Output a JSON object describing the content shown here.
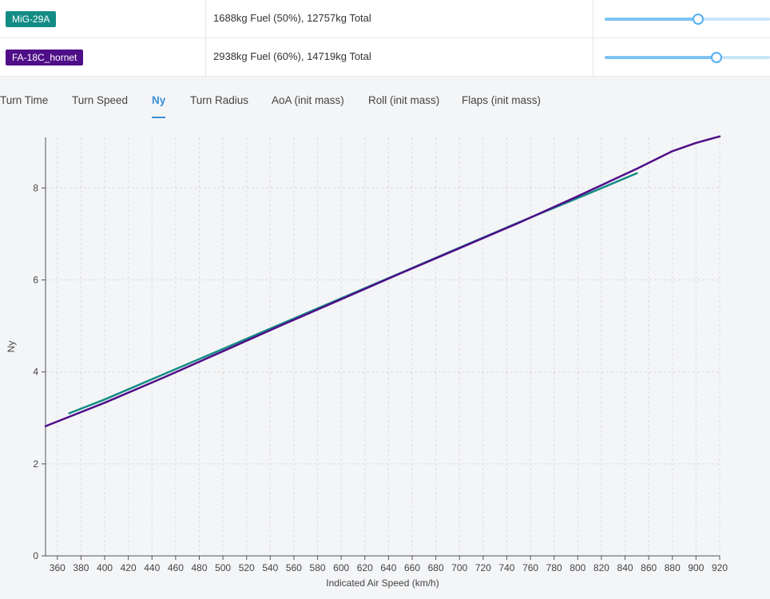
{
  "aircraft_table": {
    "rows": [
      {
        "name": "MiG-29A",
        "color": "#138c84",
        "fuel_text": "1688kg Fuel (50%), 12757kg Total",
        "fuel_fraction": 0.5
      },
      {
        "name": "FA-18C_hornet",
        "color": "#4f0e88",
        "fuel_text": "2938kg Fuel (60%), 14719kg Total",
        "fuel_fraction": 0.6
      }
    ]
  },
  "tabs": [
    {
      "label": "Turn Time",
      "active": false
    },
    {
      "label": "Turn Speed",
      "active": false
    },
    {
      "label": "Ny",
      "active": true
    },
    {
      "label": "Turn Radius",
      "active": false
    },
    {
      "label": "AoA (init mass)",
      "active": false
    },
    {
      "label": "Roll (init mass)",
      "active": false
    },
    {
      "label": "Flaps (init mass)",
      "active": false
    }
  ],
  "chart_data": {
    "type": "line",
    "xlabel": "Indicated Air Speed (km/h)",
    "ylabel": "Ny",
    "xlim": [
      350,
      920
    ],
    "ylim": [
      0,
      9.1
    ],
    "x_ticks": [
      360,
      380,
      400,
      420,
      440,
      460,
      480,
      500,
      520,
      540,
      560,
      580,
      600,
      620,
      640,
      660,
      680,
      700,
      720,
      740,
      760,
      780,
      800,
      820,
      840,
      860,
      880,
      900,
      920
    ],
    "y_ticks": [
      0,
      2,
      4,
      6,
      8
    ],
    "grid": true,
    "legend": "none",
    "series": [
      {
        "color": "#138c84",
        "x": [
          370,
          400,
          450,
          500,
          550,
          600,
          650,
          700,
          750,
          800,
          850
        ],
        "y": [
          3.1,
          3.4,
          3.95,
          4.5,
          5.05,
          5.6,
          6.15,
          6.7,
          7.25,
          7.78,
          8.32
        ]
      },
      {
        "color": "#4f0e88",
        "x": [
          350,
          400,
          450,
          500,
          550,
          600,
          650,
          700,
          750,
          800,
          850,
          880,
          900,
          920
        ],
        "y": [
          2.82,
          3.33,
          3.88,
          4.45,
          5.02,
          5.58,
          6.14,
          6.69,
          7.24,
          7.82,
          8.42,
          8.8,
          8.98,
          9.12
        ]
      }
    ]
  }
}
